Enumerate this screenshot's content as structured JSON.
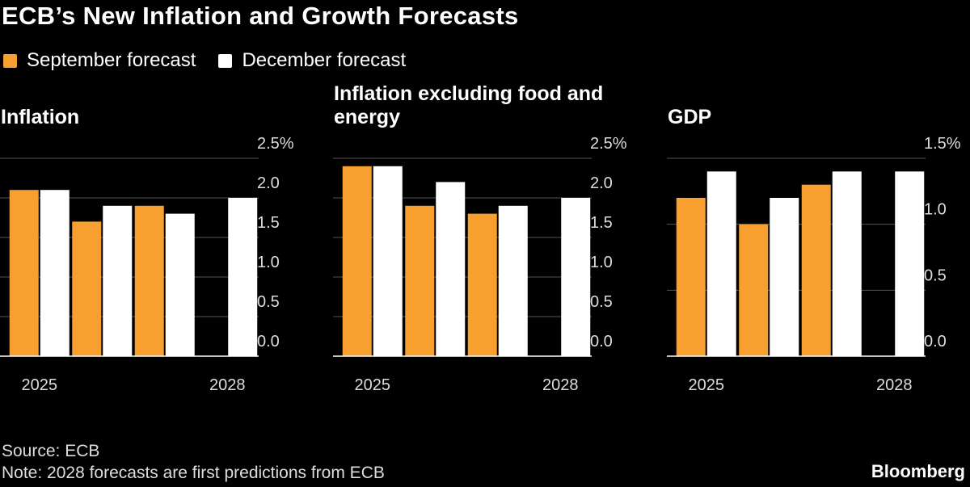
{
  "title": "ECB’s New Inflation and Growth Forecasts",
  "chart_data": [
    {
      "type": "bar",
      "title": "Inflation",
      "categories": [
        "2025",
        null,
        null,
        "2028"
      ],
      "series": [
        {
          "name": "September forecast",
          "color": "#f7a030",
          "values": [
            2.1,
            1.7,
            1.9,
            null
          ]
        },
        {
          "name": "December forecast",
          "color": "#ffffff",
          "values": [
            2.1,
            1.9,
            1.8,
            2.0
          ]
        }
      ],
      "ylim": [
        0,
        2.5
      ],
      "yticks": [
        {
          "value": 0,
          "label": "0.0"
        },
        0.5,
        {
          "value": 1,
          "label": "1.0"
        },
        1.5,
        {
          "value": 2,
          "label": "2.0"
        },
        {
          "value": 2.5,
          "label": "2.5%"
        }
      ],
      "grid": true
    },
    {
      "type": "bar",
      "title": "Inflation excluding food and energy",
      "categories": [
        "2025",
        null,
        null,
        "2028"
      ],
      "series": [
        {
          "color": "#f7a030",
          "values": [
            2.4,
            1.9,
            1.8,
            null
          ]
        },
        {
          "color": "#ffffff",
          "values": [
            2.4,
            2.2,
            1.9,
            2.0
          ]
        }
      ],
      "ylim": [
        0,
        2.5
      ],
      "yticks": [
        {
          "value": 0,
          "label": "0.0"
        },
        0.5,
        {
          "value": 1,
          "label": "1.0"
        },
        1.5,
        {
          "value": 2,
          "label": "2.0"
        },
        {
          "value": 2.5,
          "label": "2.5%"
        }
      ],
      "grid": true
    },
    {
      "type": "bar",
      "title": "GDP",
      "categories": [
        "2025",
        null,
        null,
        "2028"
      ],
      "series": [
        {
          "color": "#f7a030",
          "values": [
            1.2,
            1.0,
            1.3,
            null
          ]
        },
        {
          "color": "#ffffff",
          "values": [
            1.4,
            1.2,
            1.4,
            1.4
          ]
        }
      ],
      "ylim": [
        0,
        1.5
      ],
      "yticks": [
        {
          "value": 0,
          "label": "0.0"
        },
        0.5,
        {
          "value": 1,
          "label": "1.0"
        },
        {
          "value": 1.5,
          "label": "1.5%"
        }
      ],
      "grid": true
    }
  ],
  "source": "Source: ECB",
  "note": "Note: 2028 forecasts are first predictions from ECB",
  "brand": "Bloomberg"
}
